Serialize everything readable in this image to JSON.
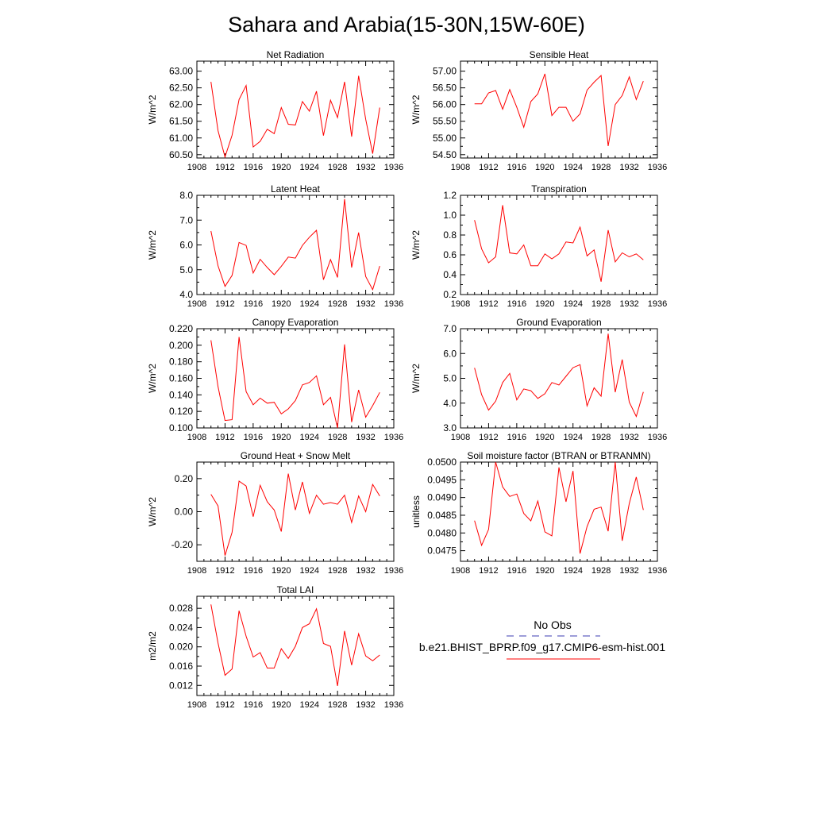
{
  "page": {
    "title": "Sahara and Arabia(15-30N,15W-60E)"
  },
  "legend": {
    "obs_label": "No Obs",
    "model_label": "b.e21.BHIST_BPRP.f09_g17.CMIP6-esm-hist.001",
    "obs_color": "#3b3bb0",
    "model_color": "#ff0000"
  },
  "chart_data": [
    {
      "type": "line",
      "title": "Net Radiation",
      "ylabel": "W/m^2",
      "x": [
        1910,
        1911,
        1912,
        1913,
        1914,
        1915,
        1916,
        1917,
        1918,
        1919,
        1920,
        1921,
        1922,
        1923,
        1924,
        1925,
        1926,
        1927,
        1928,
        1929,
        1930,
        1931,
        1932,
        1933,
        1934
      ],
      "xlim": [
        1908,
        1936
      ],
      "xticks": [
        "1908",
        "1912",
        "1916",
        "1920",
        "1924",
        "1928",
        "1932",
        "1936"
      ],
      "ylim": [
        60.4,
        63.3
      ],
      "yticks": [
        "60.50",
        "61.00",
        "61.50",
        "62.00",
        "62.50",
        "63.00"
      ],
      "series": [
        {
          "color": "#ff0000",
          "values": [
            62.68,
            61.22,
            60.43,
            61.08,
            62.15,
            62.57,
            60.73,
            60.9,
            61.26,
            61.13,
            61.91,
            61.41,
            61.39,
            62.09,
            61.8,
            62.4,
            61.07,
            62.13,
            61.61,
            62.68,
            61.04,
            62.86,
            61.56,
            60.53,
            61.91
          ]
        }
      ]
    },
    {
      "type": "line",
      "title": "Sensible Heat",
      "ylabel": "W/m^2",
      "x": [
        1910,
        1911,
        1912,
        1913,
        1914,
        1915,
        1916,
        1917,
        1918,
        1919,
        1920,
        1921,
        1922,
        1923,
        1924,
        1925,
        1926,
        1927,
        1928,
        1929,
        1930,
        1931,
        1932,
        1933,
        1934
      ],
      "xlim": [
        1908,
        1936
      ],
      "xticks": [
        "1908",
        "1912",
        "1916",
        "1920",
        "1924",
        "1928",
        "1932",
        "1936"
      ],
      "ylim": [
        54.4,
        57.3
      ],
      "yticks": [
        "54.50",
        "55.00",
        "55.50",
        "56.00",
        "56.50",
        "57.00"
      ],
      "series": [
        {
          "color": "#ff0000",
          "values": [
            56.02,
            56.02,
            56.35,
            56.42,
            55.86,
            56.45,
            55.92,
            55.32,
            56.09,
            56.32,
            56.92,
            55.67,
            55.92,
            55.92,
            55.5,
            55.72,
            56.43,
            56.67,
            56.87,
            54.76,
            56.0,
            56.27,
            56.83,
            56.15,
            56.7
          ]
        }
      ]
    },
    {
      "type": "line",
      "title": "Latent Heat",
      "ylabel": "W/m^2",
      "x": [
        1910,
        1911,
        1912,
        1913,
        1914,
        1915,
        1916,
        1917,
        1918,
        1919,
        1920,
        1921,
        1922,
        1923,
        1924,
        1925,
        1926,
        1927,
        1928,
        1929,
        1930,
        1931,
        1932,
        1933,
        1934
      ],
      "xlim": [
        1908,
        1936
      ],
      "xticks": [
        "1908",
        "1912",
        "1916",
        "1920",
        "1924",
        "1928",
        "1932",
        "1936"
      ],
      "ylim": [
        4.0,
        8.0
      ],
      "yticks": [
        "4.0",
        "5.0",
        "6.0",
        "7.0",
        "8.0"
      ],
      "series": [
        {
          "color": "#ff0000",
          "values": [
            6.56,
            5.16,
            4.33,
            4.77,
            6.1,
            5.98,
            4.87,
            5.42,
            5.09,
            4.8,
            5.14,
            5.51,
            5.47,
            5.98,
            6.31,
            6.59,
            4.6,
            5.41,
            4.69,
            7.85,
            5.09,
            6.5,
            4.73,
            4.2,
            5.15
          ]
        }
      ]
    },
    {
      "type": "line",
      "title": "Transpiration",
      "ylabel": "W/m^2",
      "x": [
        1910,
        1911,
        1912,
        1913,
        1914,
        1915,
        1916,
        1917,
        1918,
        1919,
        1920,
        1921,
        1922,
        1923,
        1924,
        1925,
        1926,
        1927,
        1928,
        1929,
        1930,
        1931,
        1932,
        1933,
        1934
      ],
      "xlim": [
        1908,
        1936
      ],
      "xticks": [
        "1908",
        "1912",
        "1916",
        "1920",
        "1924",
        "1928",
        "1932",
        "1936"
      ],
      "ylim": [
        0.2,
        1.2
      ],
      "yticks": [
        "0.2",
        "0.4",
        "0.6",
        "0.8",
        "1.0",
        "1.2"
      ],
      "series": [
        {
          "color": "#ff0000",
          "values": [
            0.95,
            0.66,
            0.52,
            0.58,
            1.1,
            0.62,
            0.61,
            0.7,
            0.49,
            0.49,
            0.61,
            0.56,
            0.61,
            0.73,
            0.72,
            0.88,
            0.59,
            0.65,
            0.33,
            0.85,
            0.53,
            0.62,
            0.58,
            0.61,
            0.55
          ]
        }
      ]
    },
    {
      "type": "line",
      "title": "Canopy Evaporation",
      "ylabel": "W/m^2",
      "x": [
        1910,
        1911,
        1912,
        1913,
        1914,
        1915,
        1916,
        1917,
        1918,
        1919,
        1920,
        1921,
        1922,
        1923,
        1924,
        1925,
        1926,
        1927,
        1928,
        1929,
        1930,
        1931,
        1932,
        1933,
        1934
      ],
      "xlim": [
        1908,
        1936
      ],
      "xticks": [
        "1908",
        "1912",
        "1916",
        "1920",
        "1924",
        "1928",
        "1932",
        "1936"
      ],
      "ylim": [
        0.1,
        0.22
      ],
      "yticks": [
        "0.100",
        "0.120",
        "0.140",
        "0.160",
        "0.180",
        "0.200",
        "0.220"
      ],
      "series": [
        {
          "color": "#ff0000",
          "values": [
            0.206,
            0.15,
            0.109,
            0.11,
            0.21,
            0.144,
            0.128,
            0.136,
            0.13,
            0.131,
            0.117,
            0.123,
            0.133,
            0.152,
            0.155,
            0.163,
            0.128,
            0.137,
            0.1,
            0.201,
            0.107,
            0.146,
            0.113,
            0.127,
            0.143
          ]
        }
      ]
    },
    {
      "type": "line",
      "title": "Ground Evaporation",
      "ylabel": "W/m^2",
      "x": [
        1910,
        1911,
        1912,
        1913,
        1914,
        1915,
        1916,
        1917,
        1918,
        1919,
        1920,
        1921,
        1922,
        1923,
        1924,
        1925,
        1926,
        1927,
        1928,
        1929,
        1930,
        1931,
        1932,
        1933,
        1934
      ],
      "xlim": [
        1908,
        1936
      ],
      "xticks": [
        "1908",
        "1912",
        "1916",
        "1920",
        "1924",
        "1928",
        "1932",
        "1936"
      ],
      "ylim": [
        3.0,
        7.0
      ],
      "yticks": [
        "3.0",
        "4.0",
        "5.0",
        "6.0",
        "7.0"
      ],
      "series": [
        {
          "color": "#ff0000",
          "values": [
            5.42,
            4.34,
            3.72,
            4.08,
            4.83,
            5.2,
            4.13,
            4.57,
            4.5,
            4.19,
            4.38,
            4.83,
            4.73,
            5.08,
            5.43,
            5.55,
            3.89,
            4.62,
            4.28,
            6.8,
            4.44,
            5.76,
            4.04,
            3.46,
            4.45
          ]
        }
      ]
    },
    {
      "type": "line",
      "title": "Ground Heat + Snow Melt",
      "ylabel": "W/m^2",
      "x": [
        1910,
        1911,
        1912,
        1913,
        1914,
        1915,
        1916,
        1917,
        1918,
        1919,
        1920,
        1921,
        1922,
        1923,
        1924,
        1925,
        1926,
        1927,
        1928,
        1929,
        1930,
        1931,
        1932,
        1933,
        1934
      ],
      "xlim": [
        1908,
        1936
      ],
      "xticks": [
        "1908",
        "1912",
        "1916",
        "1920",
        "1924",
        "1928",
        "1932",
        "1936"
      ],
      "ylim": [
        -0.3,
        0.3
      ],
      "yticks": [
        "-0.20",
        "0.00",
        "0.20"
      ],
      "ytickvalues": [
        -0.2,
        0.0,
        0.2
      ],
      "series": [
        {
          "color": "#ff0000",
          "values": [
            0.105,
            0.035,
            -0.265,
            -0.125,
            0.185,
            0.155,
            -0.03,
            0.16,
            0.06,
            0.01,
            -0.12,
            0.23,
            0.01,
            0.18,
            -0.01,
            0.1,
            0.045,
            0.055,
            0.045,
            0.1,
            -0.065,
            0.095,
            0.0,
            0.165,
            0.095
          ]
        }
      ]
    },
    {
      "type": "line",
      "title": "Soil moisture factor (BTRAN or BTRANMN)",
      "ylabel": "unitless",
      "x": [
        1910,
        1911,
        1912,
        1913,
        1914,
        1915,
        1916,
        1917,
        1918,
        1919,
        1920,
        1921,
        1922,
        1923,
        1924,
        1925,
        1926,
        1927,
        1928,
        1929,
        1930,
        1931,
        1932,
        1933,
        1934
      ],
      "xlim": [
        1908,
        1936
      ],
      "xticks": [
        "1908",
        "1912",
        "1916",
        "1920",
        "1924",
        "1928",
        "1932",
        "1936"
      ],
      "ylim": [
        0.0472,
        0.05
      ],
      "yticks": [
        "0.0475",
        "0.0480",
        "0.0485",
        "0.0490",
        "0.0495",
        "0.0500"
      ],
      "ytickvalues": [
        0.0475,
        0.048,
        0.0485,
        0.049,
        0.0495,
        0.05
      ],
      "series": [
        {
          "color": "#ff0000",
          "values": [
            0.04835,
            0.04765,
            0.0481,
            0.05,
            0.0493,
            0.04903,
            0.0491,
            0.04855,
            0.04834,
            0.0489,
            0.04803,
            0.04792,
            0.04985,
            0.04888,
            0.04975,
            0.04742,
            0.04818,
            0.04867,
            0.04873,
            0.04805,
            0.05,
            0.04778,
            0.04883,
            0.04958,
            0.04865
          ]
        }
      ]
    },
    {
      "type": "line",
      "title": "Total LAI",
      "ylabel": "m2/m2",
      "x": [
        1910,
        1911,
        1912,
        1913,
        1914,
        1915,
        1916,
        1917,
        1918,
        1919,
        1920,
        1921,
        1922,
        1923,
        1924,
        1925,
        1926,
        1927,
        1928,
        1929,
        1930,
        1931,
        1932,
        1933,
        1934
      ],
      "xlim": [
        1908,
        1936
      ],
      "xticks": [
        "1908",
        "1912",
        "1916",
        "1920",
        "1924",
        "1928",
        "1932",
        "1936"
      ],
      "ylim": [
        0.0099,
        0.0305
      ],
      "yticks": [
        "0.012",
        "0.016",
        "0.020",
        "0.024",
        "0.028"
      ],
      "ytickvalues": [
        0.012,
        0.016,
        0.02,
        0.024,
        0.028
      ],
      "series": [
        {
          "color": "#ff0000",
          "values": [
            0.0288,
            0.0208,
            0.0141,
            0.0154,
            0.0275,
            0.0222,
            0.0179,
            0.0188,
            0.0156,
            0.0156,
            0.0196,
            0.0176,
            0.0201,
            0.024,
            0.0248,
            0.0279,
            0.0207,
            0.0201,
            0.0119,
            0.0233,
            0.0162,
            0.0227,
            0.0181,
            0.0171,
            0.0183
          ]
        }
      ]
    }
  ]
}
